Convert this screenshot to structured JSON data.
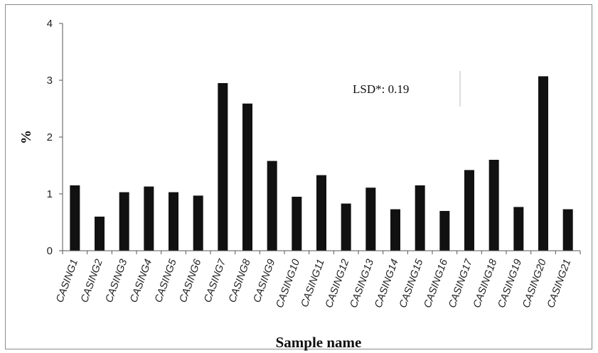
{
  "chart_data": {
    "type": "bar",
    "categories": [
      "CASING1",
      "CASING2",
      "CASING3",
      "CASING4",
      "CASING5",
      "CASING6",
      "CASING7",
      "CASING8",
      "CASING9",
      "CASING10",
      "CASING11",
      "CASING12",
      "CASING13",
      "CASING14",
      "CASING15",
      "CASING16",
      "CASING17",
      "CASING18",
      "CASING19",
      "CASING20",
      "CASING21"
    ],
    "values": [
      1.15,
      0.6,
      1.03,
      1.13,
      1.03,
      0.97,
      2.95,
      2.59,
      1.58,
      0.95,
      1.33,
      0.83,
      1.11,
      0.73,
      1.15,
      0.7,
      1.42,
      1.6,
      0.77,
      3.07,
      0.73
    ],
    "xlabel": "Sample name",
    "ylabel": "%",
    "ylim": [
      0,
      4
    ],
    "yticks": [
      0,
      1,
      2,
      3,
      4
    ],
    "annotation": "LSD*: 0.19",
    "grid": false,
    "bar_color": "#111111"
  }
}
